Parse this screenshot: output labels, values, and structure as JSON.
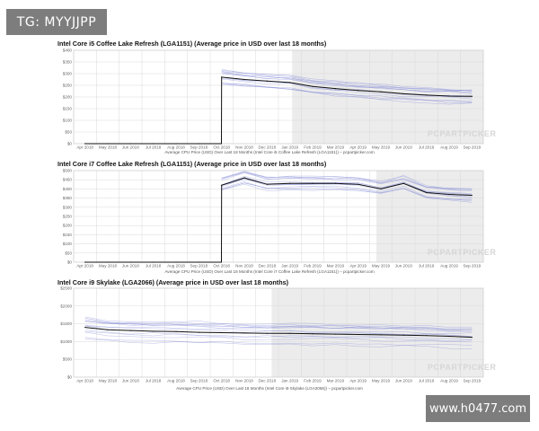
{
  "watermark_top": "TG: MYYJJPP",
  "watermark_bottom": "www.h0477.com",
  "chart_data": [
    {
      "type": "line",
      "title": "Intel Core i5 Coffee Lake Refresh (LGA1151) (Average price in USD over last 18 months)",
      "caption": "Average CPU Price (USD) Over Last 18 Months (Intel Core i5 Coffee Lake Refresh (LGA1151)) – pcpartpicker.com",
      "x_labels": [
        "Apr 2018",
        "May 2018",
        "Jun 2018",
        "Jul 2018",
        "Aug 2018",
        "Sep 2018",
        "Oct 2018",
        "Nov 2018",
        "Dec 2018",
        "Jan 2019",
        "Feb 2019",
        "Mar 2019",
        "Apr 2019",
        "May 2019",
        "Jun 2019",
        "Jul 2019",
        "Aug 2019",
        "Sep 2019"
      ],
      "y_ticks": [
        "$0",
        "$50",
        "$100",
        "$150",
        "$200",
        "$250",
        "$300",
        "$350",
        "$400"
      ],
      "ylim": [
        0,
        400
      ],
      "brand": "PCPARTPICKER",
      "series": [
        {
          "values": [
            0,
            0,
            0,
            0,
            0,
            0,
            285,
            275,
            268,
            262,
            245,
            236,
            228,
            222,
            214,
            208,
            204,
            203
          ],
          "color": "#111111"
        }
      ]
    },
    {
      "type": "line",
      "title": "Intel Core i7 Coffee Lake Refresh (LGA1151) (Average price in USD over last 18 months)",
      "caption": "Average CPU Price (USD) Over Last 18 Months (Intel Core i7 Coffee Lake Refresh (LGA1151)) – pcpartpicker.com",
      "x_labels": [
        "Apr 2018",
        "May 2018",
        "Jun 2018",
        "Jul 2018",
        "Aug 2018",
        "Sep 2018",
        "Oct 2018",
        "Nov 2018",
        "Dec 2018",
        "Jan 2019",
        "Feb 2019",
        "Mar 2019",
        "Apr 2019",
        "May 2019",
        "Jun 2019",
        "Jul 2019",
        "Aug 2019",
        "Sep 2019"
      ],
      "y_ticks": [
        "$0",
        "$50",
        "$100",
        "$150",
        "$200",
        "$250",
        "$300",
        "$350",
        "$400",
        "$450",
        "$500"
      ],
      "ylim": [
        0,
        500
      ],
      "brand": "PCPARTPICKER",
      "series": [
        {
          "values": [
            0,
            0,
            0,
            0,
            0,
            0,
            420,
            460,
            425,
            430,
            430,
            430,
            425,
            400,
            430,
            380,
            370,
            365
          ],
          "color": "#111111"
        }
      ]
    },
    {
      "type": "line",
      "title": "Intel Core i9 Skylake (LGA2066) (Average price in USD over last 18 months)",
      "caption": "Average CPU Price (USD) Over Last 18 Months (Intel Core i9 Skylake (LGA2066)) – pcpartpicker.com",
      "x_labels": [
        "Apr 2018",
        "May 2018",
        "Jun 2018",
        "Jul 2018",
        "Aug 2018",
        "Sep 2018",
        "Oct 2018",
        "Nov 2018",
        "Dec 2018",
        "Jan 2019",
        "Feb 2019",
        "Mar 2019",
        "Apr 2019",
        "May 2019",
        "Jun 2019",
        "Jul 2019",
        "Aug 2019",
        "Sep 2019"
      ],
      "y_ticks": [
        "$0",
        "$500",
        "$1000",
        "$1500",
        "$2000",
        "$2500"
      ],
      "ylim": [
        0,
        2500
      ],
      "brand": "PCPARTPICKER",
      "series": [
        {
          "values": [
            1400,
            1330,
            1310,
            1290,
            1280,
            1260,
            1250,
            1240,
            1230,
            1230,
            1220,
            1210,
            1200,
            1190,
            1180,
            1170,
            1150,
            1120
          ],
          "color": "#111111"
        }
      ]
    }
  ]
}
